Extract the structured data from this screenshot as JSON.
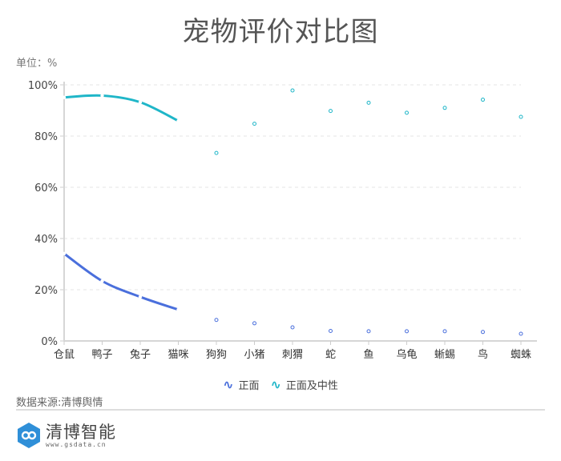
{
  "title": "宠物评价对比图",
  "unit_label": "单位：%",
  "source_label": "数据来源:清博舆情",
  "logo": {
    "name": "清博智能",
    "url": "www.gsdata.cn"
  },
  "legend": [
    {
      "label": "正面",
      "color": "#4a6fdc",
      "icon": "wave-icon"
    },
    {
      "label": "正面及中性",
      "color": "#1fb6c8",
      "icon": "wave-icon"
    }
  ],
  "chart_data": {
    "type": "line",
    "title": "宠物评价对比图",
    "xlabel": "",
    "ylabel": "单位：%",
    "ylim": [
      0,
      100
    ],
    "yticks": [
      "0%",
      "20%",
      "40%",
      "60%",
      "80%",
      "100%"
    ],
    "grid": true,
    "legend_position": "bottom",
    "categories": [
      "仓鼠",
      "鸭子",
      "兔子",
      "猫咪",
      "狗狗",
      "小猪",
      "刺猬",
      "蛇",
      "鱼",
      "乌龟",
      "蜥蜴",
      "鸟",
      "蜘蛛"
    ],
    "series": [
      {
        "name": "正面",
        "color": "#4a6fdc",
        "values": [
          34.1,
          23.4,
          17.2,
          12.2,
          8.2,
          6.9,
          5.3,
          3.9,
          3.8,
          3.8,
          3.8,
          3.5,
          2.8
        ]
      },
      {
        "name": "正面及中性",
        "color": "#1fb6c8",
        "values": [
          95.1,
          95.8,
          93.2,
          85.9,
          73.4,
          84.8,
          97.8,
          89.8,
          93.0,
          89.1,
          91.0,
          94.2,
          87.5
        ]
      }
    ]
  }
}
